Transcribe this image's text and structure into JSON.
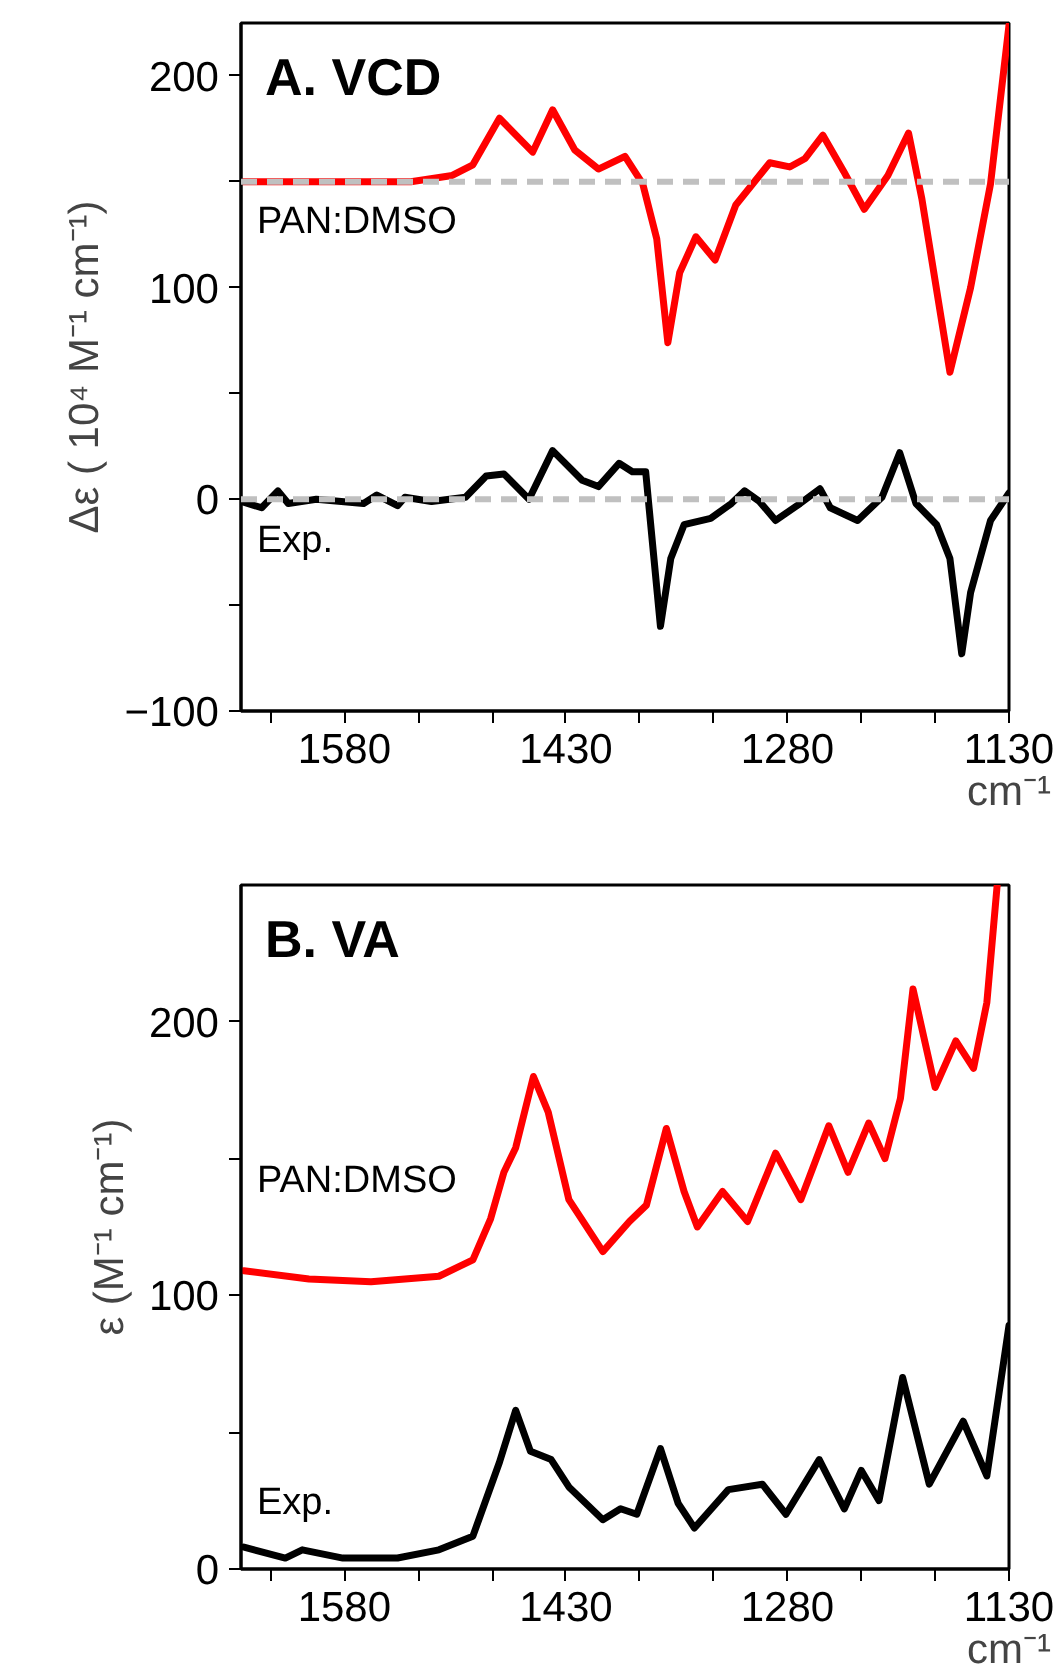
{
  "chart_data": [
    {
      "type": "line",
      "title": "A. VCD",
      "xlabel": "cm⁻¹",
      "ylabel": "Δε ( 10⁴ M⁻¹ cm⁻¹)",
      "xlim": [
        1650,
        1130
      ],
      "ylim": [
        -100,
        225
      ],
      "xticks": [
        {
          "value": 1630,
          "label": null
        },
        1580,
        {
          "value": 1530,
          "label": null
        },
        {
          "value": 1480,
          "label": null
        },
        1430,
        {
          "value": 1380,
          "label": null
        },
        {
          "value": 1330,
          "label": null
        },
        1280,
        {
          "value": 1230,
          "label": null
        },
        {
          "value": 1180,
          "label": null
        },
        1130
      ],
      "yticks": [
        -100,
        {
          "value": -50,
          "label": null
        },
        0,
        {
          "value": 50,
          "label": null
        },
        100,
        {
          "value": 150,
          "label": null
        },
        200
      ],
      "grid": false,
      "line_style": "solid",
      "ref_lines": [
        {
          "axis": "y",
          "value": 150,
          "label": null,
          "color": "#c0c0c0",
          "line_style": "dashed"
        },
        {
          "axis": "y",
          "value": 0,
          "label": null,
          "color": "#c0c0c0",
          "line_style": "dashed"
        }
      ],
      "series": [
        {
          "name": "PAN:DMSO",
          "color": "#ff0000",
          "x": [
            1650,
            1535,
            1507,
            1493,
            1475,
            1452.5,
            1439,
            1424,
            1408,
            1390,
            1378,
            1368.5,
            1361,
            1353,
            1342,
            1329,
            1315,
            1292,
            1278.5,
            1268,
            1256,
            1242,
            1228,
            1212,
            1198,
            1189,
            1170,
            1156,
            1142.5,
            1130
          ],
          "values": [
            150,
            150,
            153,
            158,
            180,
            164,
            184,
            165,
            156,
            162,
            149,
            123,
            74,
            107,
            124,
            113,
            139,
            159,
            157,
            161,
            172,
            155,
            137,
            153,
            173,
            142,
            60,
            100,
            149,
            224
          ]
        },
        {
          "name": "Exp.",
          "color": "#000000",
          "x": [
            1650,
            1636,
            1625,
            1618,
            1599,
            1567,
            1558,
            1544,
            1539,
            1521,
            1498,
            1484,
            1472,
            1455,
            1439,
            1419,
            1408,
            1394,
            1385,
            1376,
            1373,
            1366,
            1359,
            1350,
            1332,
            1318,
            1309,
            1299,
            1288,
            1271.5,
            1258,
            1251,
            1232.5,
            1216,
            1204,
            1193,
            1179,
            1170,
            1162,
            1156,
            1142.5,
            1130
          ],
          "values": [
            -1,
            -4,
            4,
            -2,
            0,
            -2,
            2,
            -3,
            1,
            -1,
            1,
            11,
            12,
            0,
            23,
            9,
            6,
            17,
            13,
            13,
            -9,
            -60,
            -28,
            -12,
            -9,
            -2,
            4,
            -1,
            -10,
            -2,
            5,
            -4,
            -10,
            1,
            22,
            -2,
            -12,
            -28,
            -73,
            -44,
            -10,
            3
          ]
        }
      ]
    },
    {
      "type": "line",
      "title": "B. VA",
      "xlabel": "cm⁻¹",
      "ylabel": "ε (M⁻¹ cm⁻¹)",
      "xlim": [
        1650,
        1130
      ],
      "ylim": [
        0,
        250
      ],
      "xticks": [
        {
          "value": 1630,
          "label": null
        },
        1580,
        {
          "value": 1530,
          "label": null
        },
        {
          "value": 1480,
          "label": null
        },
        1430,
        {
          "value": 1380,
          "label": null
        },
        {
          "value": 1330,
          "label": null
        },
        1280,
        {
          "value": 1230,
          "label": null
        },
        {
          "value": 1180,
          "label": null
        },
        1130
      ],
      "yticks": [
        0,
        {
          "value": 50,
          "label": null
        },
        100,
        {
          "value": 150,
          "label": null
        },
        200
      ],
      "grid": false,
      "line_style": "solid",
      "series": [
        {
          "name": "PAN:DMSO",
          "color": "#ff0000",
          "x": [
            1648,
            1604,
            1562,
            1516,
            1493,
            1481,
            1472,
            1464,
            1452,
            1442,
            1428,
            1405,
            1387,
            1375.5,
            1362,
            1350,
            1341,
            1324,
            1307,
            1288,
            1271,
            1252,
            1239,
            1225,
            1214,
            1203.5,
            1195,
            1180,
            1166,
            1154,
            1145,
            1138
          ],
          "values": [
            109,
            106,
            105,
            107,
            113,
            128,
            145,
            154,
            180,
            167,
            135,
            116,
            127,
            133,
            161,
            138,
            125,
            138,
            127,
            152,
            135,
            162,
            145,
            163,
            150,
            172,
            212,
            176,
            193,
            183,
            207,
            250
          ]
        },
        {
          "name": "Exp.",
          "color": "#000000",
          "x": [
            1648,
            1620,
            1608.5,
            1581,
            1544,
            1516,
            1493,
            1475,
            1464,
            1454,
            1440,
            1428,
            1405,
            1393,
            1382,
            1366,
            1354,
            1343,
            1320,
            1297,
            1281,
            1258.5,
            1241.5,
            1230,
            1218,
            1202,
            1184,
            1161,
            1145,
            1130
          ],
          "values": [
            8,
            4,
            7,
            4,
            4,
            7,
            12,
            39,
            58,
            43,
            40,
            30,
            18,
            22,
            20,
            44,
            24,
            15,
            29,
            31,
            20,
            40,
            22,
            36,
            25,
            70,
            31,
            54,
            34,
            89
          ]
        }
      ]
    }
  ]
}
